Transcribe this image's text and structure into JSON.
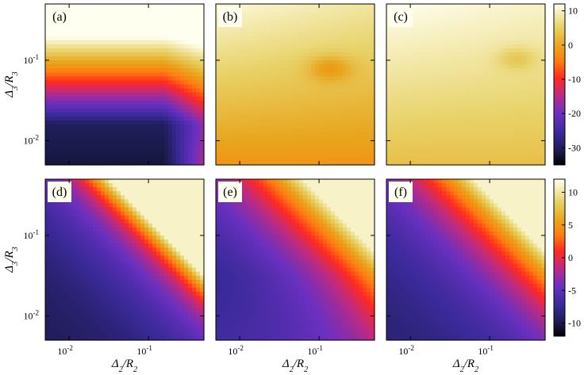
{
  "figure": {
    "axis": {
      "x_label_main": "Δ",
      "x_label_sub1": "2",
      "x_label_slash": "/R",
      "x_label_sub2": "2",
      "y_label_main": "Δ",
      "y_label_sub1": "3",
      "y_label_slash": "/R",
      "y_label_sub2": "3",
      "tick_base": "10",
      "tick_exp_minus2": "-2",
      "tick_exp_minus1": "-1"
    },
    "colorbars": [
      {
        "ticks": [
          "10",
          "0",
          "-10",
          "-20",
          "-30"
        ]
      },
      {
        "ticks": [
          "10",
          "5",
          "0",
          "-5",
          "-10"
        ]
      }
    ]
  },
  "chart_data": [
    {
      "type": "heatmap",
      "panel": "(a)",
      "x_scale": "log",
      "y_scale": "log",
      "xlim": [
        0.005,
        0.5
      ],
      "ylim": [
        0.005,
        0.5
      ],
      "colorbar": 0
    },
    {
      "type": "heatmap",
      "panel": "(b)",
      "x_scale": "log",
      "y_scale": "log",
      "xlim": [
        0.005,
        0.5
      ],
      "ylim": [
        0.005,
        0.5
      ],
      "colorbar": 0
    },
    {
      "type": "heatmap",
      "panel": "(c)",
      "x_scale": "log",
      "y_scale": "log",
      "xlim": [
        0.005,
        0.5
      ],
      "ylim": [
        0.005,
        0.5
      ],
      "colorbar": 0
    },
    {
      "type": "heatmap",
      "panel": "(d)",
      "x_scale": "log",
      "y_scale": "log",
      "xlim": [
        0.005,
        0.5
      ],
      "ylim": [
        0.005,
        0.5
      ],
      "colorbar": 1
    },
    {
      "type": "heatmap",
      "panel": "(e)",
      "x_scale": "log",
      "y_scale": "log",
      "xlim": [
        0.005,
        0.5
      ],
      "ylim": [
        0.005,
        0.5
      ],
      "colorbar": 1
    },
    {
      "type": "heatmap",
      "panel": "(f)",
      "x_scale": "log",
      "y_scale": "log",
      "xlim": [
        0.005,
        0.5
      ],
      "ylim": [
        0.005,
        0.5
      ],
      "colorbar": 1
    }
  ]
}
